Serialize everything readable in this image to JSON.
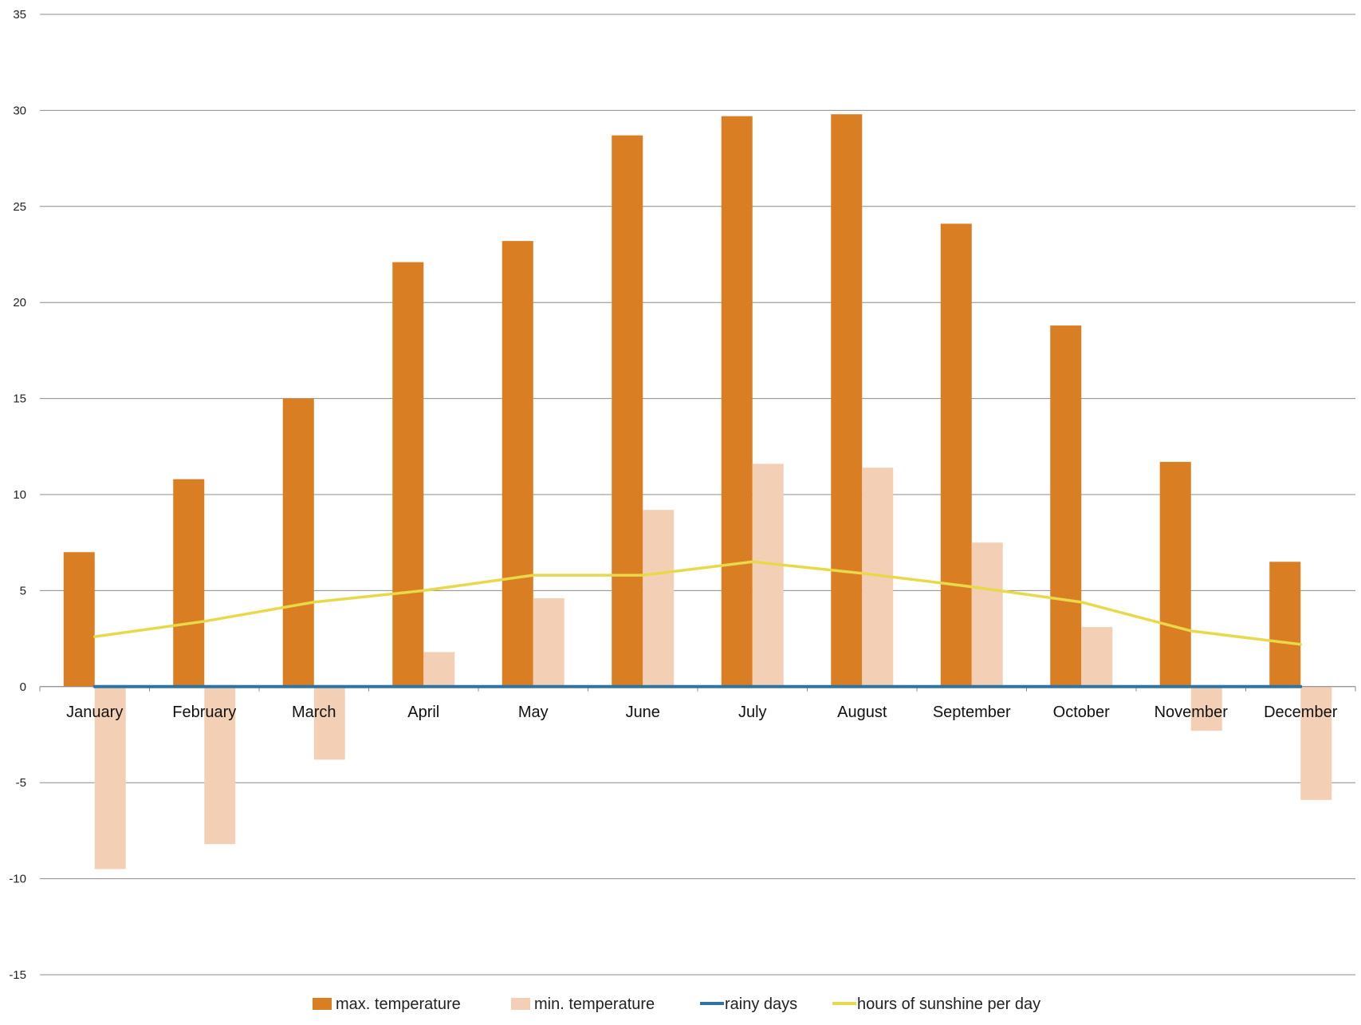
{
  "chart_data": {
    "type": "bar",
    "categories": [
      "January",
      "February",
      "March",
      "April",
      "May",
      "June",
      "July",
      "August",
      "September",
      "October",
      "November",
      "December"
    ],
    "series": [
      {
        "name": "max.  temperature",
        "kind": "bar",
        "color": "#D97E22",
        "values": [
          7.0,
          10.8,
          15.0,
          22.1,
          23.2,
          28.7,
          29.7,
          29.8,
          24.1,
          18.8,
          11.7,
          6.5
        ]
      },
      {
        "name": "min. temperature",
        "kind": "bar",
        "color": "#F3D0B5",
        "values": [
          -9.5,
          -8.2,
          -3.8,
          1.8,
          4.6,
          9.2,
          11.6,
          11.4,
          7.5,
          3.1,
          -2.3,
          -5.9
        ]
      },
      {
        "name": "rainy days",
        "kind": "line",
        "color": "#2E75A6",
        "values": [
          0,
          0,
          0,
          0,
          0,
          0,
          0,
          0,
          0,
          0,
          0,
          0
        ]
      },
      {
        "name": "hours of sunshine per day",
        "kind": "line",
        "color": "#E8D94A",
        "values": [
          2.6,
          3.4,
          4.4,
          5.0,
          5.8,
          5.8,
          6.5,
          5.9,
          5.2,
          4.4,
          2.9,
          2.2
        ]
      }
    ],
    "y_ticks": [
      "35",
      "30",
      "25",
      "20",
      "15",
      "10",
      "5",
      "0",
      "-5",
      "-10",
      "-15"
    ],
    "ylim": [
      -15,
      35
    ],
    "grid": true,
    "legend_position": "bottom"
  }
}
